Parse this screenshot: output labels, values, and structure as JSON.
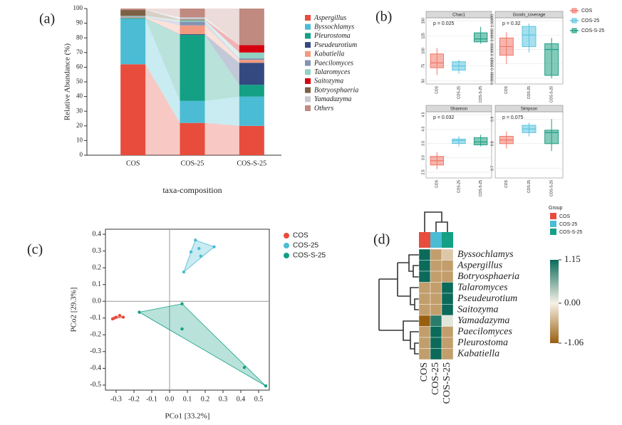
{
  "chart_data": [
    {
      "type": "bar",
      "panel_label": "(a)",
      "y_label": "Relative Abundance (%)",
      "x_label": "taxa-composition",
      "categories": [
        "COS",
        "COS-25",
        "COS-S-25"
      ],
      "ylim": [
        0,
        100
      ],
      "yticks": [
        0,
        10,
        20,
        30,
        40,
        50,
        60,
        70,
        80,
        90,
        100
      ],
      "series": [
        {
          "name": "Aspergillus",
          "color": "#e84c3d",
          "values": [
            62,
            22,
            20
          ]
        },
        {
          "name": "Byssochlamys",
          "color": "#4bbcd4",
          "values": [
            31,
            15,
            20
          ]
        },
        {
          "name": "Pleurostoma",
          "color": "#13a085",
          "values": [
            0.5,
            45,
            8
          ]
        },
        {
          "name": "Pseudeurotium",
          "color": "#34497f",
          "values": [
            0,
            0.5,
            15
          ]
        },
        {
          "name": "Kabatiella",
          "color": "#f29a80",
          "values": [
            0.5,
            6,
            2
          ]
        },
        {
          "name": "Paecilomyces",
          "color": "#8493b4",
          "values": [
            0.5,
            2.5,
            1
          ]
        },
        {
          "name": "Talaromyces",
          "color": "#90d2c2",
          "values": [
            0.5,
            1,
            4
          ]
        },
        {
          "name": "Saitozyma",
          "color": "#d7000f",
          "values": [
            0,
            0,
            5
          ]
        },
        {
          "name": "Botryosphaeria",
          "color": "#7d6045",
          "values": [
            4,
            0.5,
            0
          ]
        },
        {
          "name": "Yamadazyma",
          "color": "#c9c9cf",
          "values": [
            0,
            1.5,
            0
          ]
        },
        {
          "name": "Others",
          "color": "#c08a80",
          "values": [
            1,
            6,
            25
          ]
        }
      ]
    },
    {
      "type": "box",
      "panel_label": "(b)",
      "groups": [
        "COS",
        "COS-25",
        "COS-S-25"
      ],
      "colors": [
        "#f0796a",
        "#5cc4e0",
        "#1f9e84"
      ],
      "panels": [
        {
          "title": "Chao1",
          "annotation": "p = 0.025",
          "ylim": [
            45,
            155
          ],
          "yticks": [
            50,
            75,
            100,
            125,
            150
          ],
          "boxes": [
            {
              "low": 60,
              "q1": 72,
              "median": 80,
              "q3": 95,
              "high": 105
            },
            {
              "low": 62,
              "q1": 68,
              "median": 75,
              "q3": 82,
              "high": 85
            },
            {
              "low": 112,
              "q1": 115,
              "median": 120,
              "q3": 130,
              "high": 140
            }
          ]
        },
        {
          "title": "Goods_coverage",
          "annotation": "p = 0.32",
          "ylim": [
            0.99978,
            1.00001
          ],
          "yticks": [
            {
              "value": 0.9998,
              "label": "0.99980"
            },
            {
              "value": 0.99985,
              "label": "0.99985"
            },
            {
              "value": 0.9999,
              "label": "0.99990"
            },
            {
              "value": 0.99995,
              "label": "0.99995"
            },
            {
              "value": 1,
              "label": "1.00000"
            }
          ],
          "boxes": [
            {
              "low": 0.99985,
              "q1": 0.99988,
              "median": 0.99991,
              "q3": 0.99994,
              "high": 0.99996
            },
            {
              "low": 0.99989,
              "q1": 0.99991,
              "median": 0.99995,
              "q3": 0.99998,
              "high": 0.99999
            },
            {
              "low": 0.9998,
              "q1": 0.99981,
              "median": 0.9999,
              "q3": 0.99992,
              "high": 0.99994
            }
          ]
        },
        {
          "title": "Shannon",
          "annotation": "p = 0.032",
          "ylim": [
            2.3,
            4.6
          ],
          "yticks": [
            2.5,
            {
              "value": 3,
              "label": "3.0"
            },
            3.5,
            {
              "value": 4,
              "label": "4.0"
            },
            4.5
          ],
          "boxes": [
            {
              "low": 2.6,
              "q1": 2.75,
              "median": 2.9,
              "q3": 3.05,
              "high": 3.2
            },
            {
              "low": 3.4,
              "q1": 3.5,
              "median": 3.6,
              "q3": 3.65,
              "high": 3.75
            },
            {
              "low": 3.4,
              "q1": 3.45,
              "median": 3.55,
              "q3": 3.7,
              "high": 3.8
            }
          ]
        },
        {
          "title": "Simpson",
          "annotation": "p = 0.075",
          "ylim": [
            0.66,
            0.93
          ],
          "yticks": [
            0.7,
            0.8,
            0.9
          ],
          "boxes": [
            {
              "low": 0.78,
              "q1": 0.8,
              "median": 0.815,
              "q3": 0.83,
              "high": 0.85
            },
            {
              "low": 0.83,
              "q1": 0.845,
              "median": 0.86,
              "q3": 0.875,
              "high": 0.885
            },
            {
              "low": 0.77,
              "q1": 0.8,
              "median": 0.845,
              "q3": 0.855,
              "high": 0.9
            }
          ]
        }
      ]
    },
    {
      "type": "scatter",
      "panel_label": "(c)",
      "x_label": "PCo1 [33.2%]",
      "y_label": "PCo2 [29.3%]",
      "xlim": [
        -0.36,
        0.56
      ],
      "xticks": [
        -0.3,
        -0.2,
        -0.1,
        {
          "value": 0,
          "label": "0.0"
        },
        0.1,
        0.2,
        0.3,
        0.4,
        0.5
      ],
      "ylim": [
        -0.53,
        0.43
      ],
      "yticks": [
        -0.5,
        -0.4,
        -0.3,
        -0.2,
        -0.1,
        {
          "value": 0,
          "label": "0.0"
        },
        0.1,
        0.2,
        0.3,
        0.4
      ],
      "series": [
        {
          "name": "COS",
          "color": "#e84c3d",
          "x": [
            -0.32,
            -0.31,
            -0.3,
            -0.28,
            -0.26
          ],
          "y": [
            -0.105,
            -0.1,
            -0.095,
            -0.085,
            -0.095
          ]
        },
        {
          "name": "COS-25",
          "color": "#4bbcd4",
          "x": [
            0.08,
            0.12,
            0.165,
            0.175,
            0.145,
            0.25
          ],
          "y": [
            0.175,
            0.295,
            0.315,
            0.27,
            0.365,
            0.325
          ]
        },
        {
          "name": "COS-S-25",
          "color": "#13a085",
          "x": [
            -0.17,
            0.07,
            0.07,
            0.42,
            0.54
          ],
          "y": [
            -0.065,
            -0.015,
            -0.165,
            -0.395,
            -0.505
          ]
        }
      ]
    },
    {
      "type": "heatmap",
      "panel_label": "(d)",
      "legend_title": "Group",
      "columns": [
        "COS",
        "COS-25",
        "COS-S-25"
      ],
      "column_colors": [
        "#e84c3d",
        "#4bbcd4",
        "#13a085"
      ],
      "rows": [
        "Byssochlamys",
        "Aspergillus",
        "Botryosphaeria",
        "Talaromyces",
        "Pseudeurotium",
        "Saitozyma",
        "Yamadazyma",
        "Paecilomyces",
        "Pleurostoma",
        "Kabatiella"
      ],
      "values": [
        [
          1.15,
          -0.6,
          -0.3
        ],
        [
          1.15,
          -0.6,
          -0.6
        ],
        [
          1.15,
          -0.6,
          -0.6
        ],
        [
          -0.6,
          -0.6,
          1.15
        ],
        [
          -0.6,
          -0.6,
          1.15
        ],
        [
          -0.6,
          -0.6,
          1.15
        ],
        [
          -1.06,
          1.0,
          0.1
        ],
        [
          -0.6,
          1.15,
          -0.6
        ],
        [
          -0.6,
          1.15,
          -0.6
        ],
        [
          -0.6,
          1.15,
          -0.6
        ]
      ],
      "zlim": [
        -1.06,
        1.15
      ],
      "colorscale": [
        "#9a5e10",
        "#f6f1e6",
        "#0b6a5a"
      ],
      "zticks": [
        1.15,
        {
          "value": 0,
          "label": "0.00"
        },
        -1.06
      ]
    }
  ]
}
